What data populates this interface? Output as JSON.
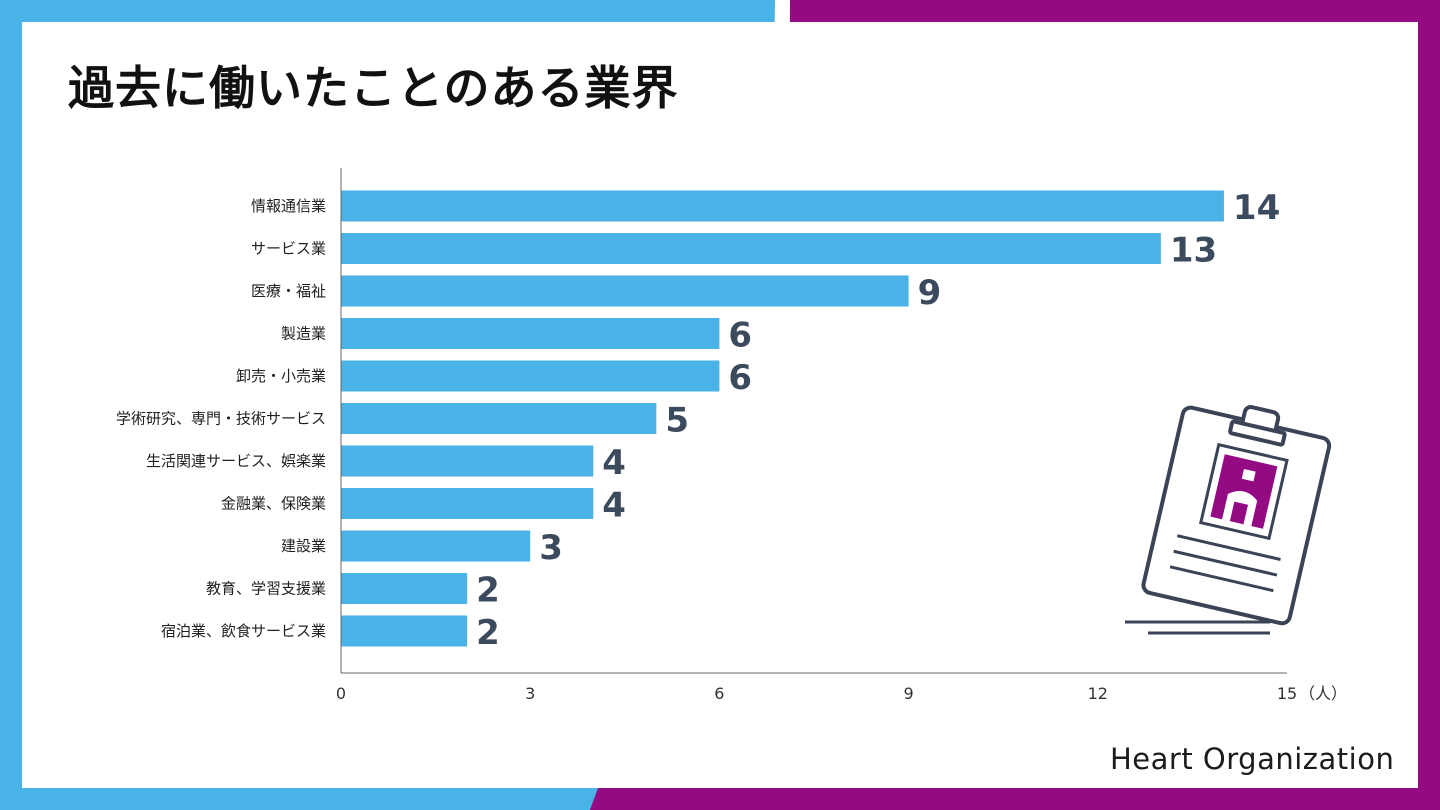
{
  "colors": {
    "left_accent": "#49b2e6",
    "right_accent": "#940a82",
    "bar": "#49b2e6",
    "value_text": "#3b4a5c"
  },
  "title": "過去に働いたことのある業界",
  "logo": {
    "text": "Heart Organization"
  },
  "illustration": {
    "icon": "id-badge-icon"
  },
  "chart_data": {
    "type": "bar",
    "orientation": "horizontal",
    "title": "過去に働いたことのある業界",
    "categories": [
      "情報通信業",
      "サービス業",
      "医療・福祉",
      "製造業",
      "卸売・小売業",
      "学術研究、専門・技術サービス",
      "生活関連サービス、娯楽業",
      "金融業、保険業",
      "建設業",
      "教育、学習支援業",
      "宿泊業、飲食サービス業"
    ],
    "values": [
      14,
      13,
      9,
      6,
      6,
      5,
      4,
      4,
      3,
      2,
      2
    ],
    "xlim": [
      0,
      15
    ],
    "xticks": [
      "0",
      "3",
      "6",
      "9",
      "12",
      "15"
    ],
    "unit": "（人）",
    "grid": false,
    "legend": "none"
  }
}
